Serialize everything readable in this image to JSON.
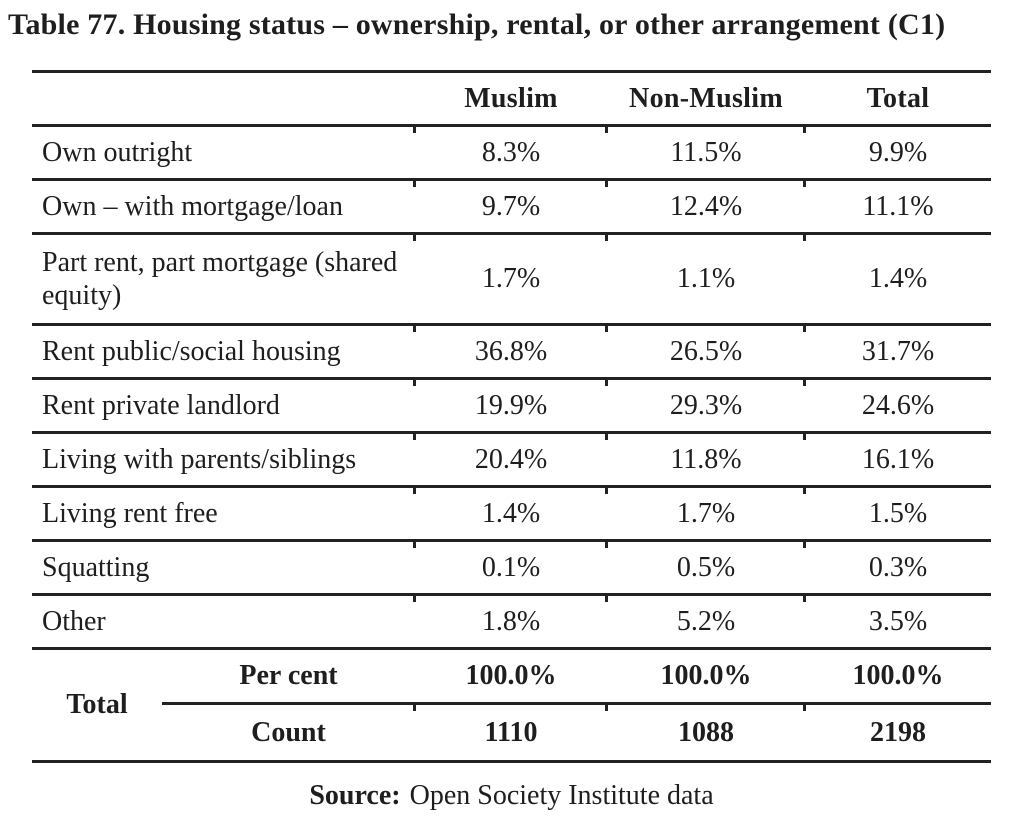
{
  "title": "Table 77. Housing status – ownership, rental, or other arrangement (C1)",
  "header": {
    "muslim": "Muslim",
    "non_muslim": "Non-Muslim",
    "total": "Total"
  },
  "rows": [
    {
      "label": "Own outright",
      "muslim": "8.3%",
      "non_muslim": "11.5%",
      "total": "9.9%"
    },
    {
      "label": "Own – with mortgage/loan",
      "muslim": "9.7%",
      "non_muslim": "12.4%",
      "total": "11.1%"
    },
    {
      "label": "Part rent, part mortgage (shared equity)",
      "muslim": "1.7%",
      "non_muslim": "1.1%",
      "total": "1.4%"
    },
    {
      "label": "Rent public/social housing",
      "muslim": "36.8%",
      "non_muslim": "26.5%",
      "total": "31.7%"
    },
    {
      "label": "Rent private landlord",
      "muslim": "19.9%",
      "non_muslim": "29.3%",
      "total": "24.6%"
    },
    {
      "label": "Living with parents/siblings",
      "muslim": "20.4%",
      "non_muslim": "11.8%",
      "total": "16.1%"
    },
    {
      "label": "Living rent free",
      "muslim": "1.4%",
      "non_muslim": "1.7%",
      "total": "1.5%"
    },
    {
      "label": "Squatting",
      "muslim": "0.1%",
      "non_muslim": "0.5%",
      "total": "0.3%"
    },
    {
      "label": "Other",
      "muslim": "1.8%",
      "non_muslim": "5.2%",
      "total": "3.5%"
    }
  ],
  "total_block": {
    "label": "Total",
    "percent_row": {
      "label": "Per cent",
      "muslim": "100.0%",
      "non_muslim": "100.0%",
      "total": "100.0%"
    },
    "count_row": {
      "label": "Count",
      "muslim": "1110",
      "non_muslim": "1088",
      "total": "2198"
    }
  },
  "source": {
    "prefix": "Source:",
    "text": "Open Society Institute data"
  },
  "colors": {
    "text": "#1e1e1e",
    "rule": "#222222",
    "background": "#ffffff"
  }
}
